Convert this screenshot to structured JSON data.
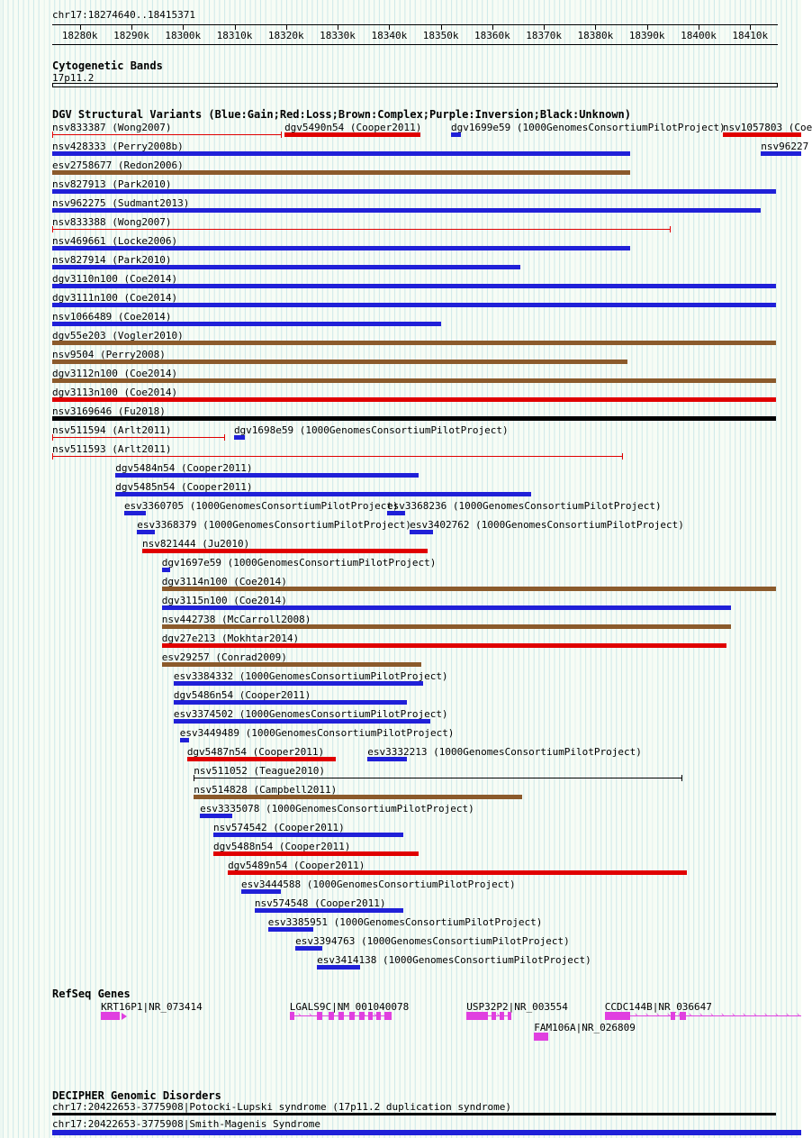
{
  "chart_data": {
    "type": "genome-tracks",
    "region": {
      "chrom": "chr17",
      "start": 18274640,
      "end": 18415371,
      "label": "chr17:18274640..18415371"
    },
    "ruler": {
      "ticks": [
        {
          "bp": 18280000,
          "label": "18280k"
        },
        {
          "bp": 18290000,
          "label": "18290k"
        },
        {
          "bp": 18300000,
          "label": "18300k"
        },
        {
          "bp": 18310000,
          "label": "18310k"
        },
        {
          "bp": 18320000,
          "label": "18320k"
        },
        {
          "bp": 18330000,
          "label": "18330k"
        },
        {
          "bp": 18340000,
          "label": "18340k"
        },
        {
          "bp": 18350000,
          "label": "18350k"
        },
        {
          "bp": 18360000,
          "label": "18360k"
        },
        {
          "bp": 18370000,
          "label": "18370k"
        },
        {
          "bp": 18380000,
          "label": "18380k"
        },
        {
          "bp": 18390000,
          "label": "18390k"
        },
        {
          "bp": 18400000,
          "label": "18400k"
        },
        {
          "bp": 18410000,
          "label": "18410k"
        }
      ]
    },
    "cytobands": {
      "header": "Cytogenetic Bands",
      "band": "17p11.2"
    },
    "colors": {
      "gain": "#2020d8",
      "loss": "#e00000",
      "complex": "#8b5a2b",
      "inversion": "#800080",
      "unknown": "#000000",
      "gene": "#e040e0",
      "grid": "#cfe9e9"
    },
    "dgv": {
      "header": "DGV Structural Variants (Blue:Gain;Red:Loss;Brown:Complex;Purple:Inversion;Black:Unknown)",
      "rows": [
        [
          {
            "label": "nsv833387 (Wong2007)",
            "color": "loss",
            "glyph": "line",
            "start": 18274640,
            "end": 18319200
          },
          {
            "label": "dgv5490n54 (Cooper2011)",
            "color": "loss",
            "glyph": "bar",
            "start": 18319700,
            "end": 18346000
          },
          {
            "label": "dgv1699e59 (1000GenomesConsortiumPilotProject)",
            "color": "gain",
            "glyph": "bar",
            "start": 18352000,
            "end": 18353900
          },
          {
            "label": "nsv1057803 (Coe",
            "color": "loss",
            "glyph": "bar",
            "start": 18404700,
            "end": 18420000
          }
        ],
        [
          {
            "label": "nsv428333 (Perry2008b)",
            "color": "gain",
            "glyph": "bar",
            "start": 18274640,
            "end": 18386700
          },
          {
            "label": "nsv96227",
            "color": "gain",
            "glyph": "bar",
            "start": 18412100,
            "end": 18420000
          }
        ],
        [
          {
            "label": "esv2758677 (Redon2006)",
            "color": "complex",
            "glyph": "bar",
            "start": 18274640,
            "end": 18386700
          }
        ],
        [
          {
            "label": "nsv827913 (Park2010)",
            "color": "gain",
            "glyph": "bar",
            "start": 18274640,
            "end": 18415000
          }
        ],
        [
          {
            "label": "nsv962275 (Sudmant2013)",
            "color": "gain",
            "glyph": "bar",
            "start": 18274640,
            "end": 18412100
          }
        ],
        [
          {
            "label": "nsv833388 (Wong2007)",
            "color": "loss",
            "glyph": "line",
            "start": 18274640,
            "end": 18394600
          }
        ],
        [
          {
            "label": "nsv469661 (Locke2006)",
            "color": "gain",
            "glyph": "bar",
            "start": 18274640,
            "end": 18386700
          }
        ],
        [
          {
            "label": "nsv827914 (Park2010)",
            "color": "gain",
            "glyph": "bar",
            "start": 18274640,
            "end": 18365400
          }
        ],
        [
          {
            "label": "dgv3110n100 (Coe2014)",
            "color": "gain",
            "glyph": "bar",
            "start": 18274640,
            "end": 18415000
          }
        ],
        [
          {
            "label": "dgv3111n100 (Coe2014)",
            "color": "gain",
            "glyph": "bar",
            "start": 18274640,
            "end": 18415000
          }
        ],
        [
          {
            "label": "nsv1066489 (Coe2014)",
            "color": "gain",
            "glyph": "bar",
            "start": 18274640,
            "end": 18350100
          }
        ],
        [
          {
            "label": "dgv55e203 (Vogler2010)",
            "color": "complex",
            "glyph": "bar",
            "start": 18274640,
            "end": 18415000
          }
        ],
        [
          {
            "label": "nsv9504 (Perry2008)",
            "color": "complex",
            "glyph": "bar",
            "start": 18274640,
            "end": 18386200
          }
        ],
        [
          {
            "label": "dgv3112n100 (Coe2014)",
            "color": "complex",
            "glyph": "bar",
            "start": 18274640,
            "end": 18415000
          }
        ],
        [
          {
            "label": "dgv3113n100 (Coe2014)",
            "color": "loss",
            "glyph": "bar",
            "start": 18274640,
            "end": 18415000
          }
        ],
        [
          {
            "label": "nsv3169646 (Fu2018)",
            "color": "unknown",
            "glyph": "bar",
            "start": 18274640,
            "end": 18415000
          }
        ],
        [
          {
            "label": "nsv511594 (Arlt2011)",
            "color": "loss",
            "glyph": "line",
            "start": 18274640,
            "end": 18308200
          },
          {
            "label": "dgv1698e59 (1000GenomesConsortiumPilotProject)",
            "color": "gain",
            "glyph": "bar",
            "start": 18309900,
            "end": 18312000
          }
        ],
        [
          {
            "label": "nsv511593 (Arlt2011)",
            "color": "loss",
            "glyph": "line",
            "start": 18274640,
            "end": 18385300
          }
        ],
        [
          {
            "label": "dgv5484n54 (Cooper2011)",
            "color": "gain",
            "glyph": "bar",
            "start": 18286900,
            "end": 18345700
          }
        ],
        [
          {
            "label": "dgv5485n54 (Cooper2011)",
            "color": "gain",
            "glyph": "bar",
            "start": 18286900,
            "end": 18367500
          }
        ],
        [
          {
            "label": "esv3360705 (1000GenomesConsortiumPilotProject)",
            "color": "gain",
            "glyph": "bar",
            "start": 18288600,
            "end": 18292800
          },
          {
            "label": "esv3368236 (1000GenomesConsortiumPilotProject)",
            "color": "gain",
            "glyph": "bar",
            "start": 18339600,
            "end": 18343100
          }
        ],
        [
          {
            "label": "esv3368379 (1000GenomesConsortiumPilotProject)",
            "color": "gain",
            "glyph": "bar",
            "start": 18291100,
            "end": 18294500
          },
          {
            "label": "esv3402762 (1000GenomesConsortiumPilotProject)",
            "color": "gain",
            "glyph": "bar",
            "start": 18344000,
            "end": 18348500
          }
        ],
        [
          {
            "label": "nsv821444 (Ju2010)",
            "color": "loss",
            "glyph": "bar",
            "start": 18292100,
            "end": 18347400
          }
        ],
        [
          {
            "label": "dgv1697e59 (1000GenomesConsortiumPilotProject)",
            "color": "gain",
            "glyph": "bar",
            "start": 18295900,
            "end": 18297500
          }
        ],
        [
          {
            "label": "dgv3114n100 (Coe2014)",
            "color": "complex",
            "glyph": "bar",
            "start": 18295900,
            "end": 18415000
          }
        ],
        [
          {
            "label": "dgv3115n100 (Coe2014)",
            "color": "gain",
            "glyph": "bar",
            "start": 18295900,
            "end": 18406300
          }
        ],
        [
          {
            "label": "nsv442738 (McCarroll2008)",
            "color": "complex",
            "glyph": "bar",
            "start": 18295900,
            "end": 18406300
          }
        ],
        [
          {
            "label": "dgv27e213 (Mokhtar2014)",
            "color": "loss",
            "glyph": "bar",
            "start": 18295900,
            "end": 18405400
          }
        ],
        [
          {
            "label": "esv29257 (Conrad2009)",
            "color": "complex",
            "glyph": "bar",
            "start": 18295900,
            "end": 18346200
          }
        ],
        [
          {
            "label": "esv3384332 (1000GenomesConsortiumPilotProject)",
            "color": "gain",
            "glyph": "bar",
            "start": 18298200,
            "end": 18346600
          }
        ],
        [
          {
            "label": "dgv5486n54 (Cooper2011)",
            "color": "gain",
            "glyph": "bar",
            "start": 18298200,
            "end": 18343400
          }
        ],
        [
          {
            "label": "esv3374502 (1000GenomesConsortiumPilotProject)",
            "color": "gain",
            "glyph": "bar",
            "start": 18298200,
            "end": 18348000
          }
        ],
        [
          {
            "label": "esv3449489 (1000GenomesConsortiumPilotProject)",
            "color": "gain",
            "glyph": "bar",
            "start": 18299400,
            "end": 18301200
          }
        ],
        [
          {
            "label": "dgv5487n54 (Cooper2011)",
            "color": "loss",
            "glyph": "bar",
            "start": 18300800,
            "end": 18329600
          },
          {
            "label": "esv3332213 (1000GenomesConsortiumPilotProject)",
            "color": "gain",
            "glyph": "bar",
            "start": 18335800,
            "end": 18343400
          }
        ],
        [
          {
            "label": "nsv511052 (Teague2010)",
            "color": "unknown",
            "glyph": "line",
            "start": 18302100,
            "end": 18396900
          }
        ],
        [
          {
            "label": "nsv514828 (Campbell2011)",
            "color": "complex",
            "glyph": "bar",
            "start": 18302100,
            "end": 18365800
          }
        ],
        [
          {
            "label": "esv3335078 (1000GenomesConsortiumPilotProject)",
            "color": "gain",
            "glyph": "bar",
            "start": 18303300,
            "end": 18309600
          }
        ],
        [
          {
            "label": "nsv574542 (Cooper2011)",
            "color": "gain",
            "glyph": "bar",
            "start": 18305900,
            "end": 18342700
          }
        ],
        [
          {
            "label": "dgv5488n54 (Cooper2011)",
            "color": "loss",
            "glyph": "bar",
            "start": 18305900,
            "end": 18345700
          }
        ],
        [
          {
            "label": "dgv5489n54 (Cooper2011)",
            "color": "loss",
            "glyph": "bar",
            "start": 18308700,
            "end": 18397700
          }
        ],
        [
          {
            "label": "esv3444588 (1000GenomesConsortiumPilotProject)",
            "color": "gain",
            "glyph": "bar",
            "start": 18311300,
            "end": 18319000
          }
        ],
        [
          {
            "label": "nsv574548 (Cooper2011)",
            "color": "gain",
            "glyph": "bar",
            "start": 18313900,
            "end": 18342700
          }
        ],
        [
          {
            "label": "esv3385951 (1000GenomesConsortiumPilotProject)",
            "color": "gain",
            "glyph": "bar",
            "start": 18316500,
            "end": 18325300
          }
        ],
        [
          {
            "label": "esv3394763 (1000GenomesConsortiumPilotProject)",
            "color": "gain",
            "glyph": "bar",
            "start": 18321800,
            "end": 18327000
          }
        ],
        [
          {
            "label": "esv3414138 (1000GenomesConsortiumPilotProject)",
            "color": "gain",
            "glyph": "bar",
            "start": 18326000,
            "end": 18334400
          }
        ]
      ]
    },
    "refseq": {
      "header": "RefSeq Genes",
      "genes": [
        {
          "name": "KRT16P1|NR_073414",
          "start": 18284100,
          "end": 18287700,
          "strand": "+",
          "row": 0,
          "arrow": true,
          "exons": [
            [
              18284100,
              18287700
            ]
          ]
        },
        {
          "name": "LGALS9C|NM_001040078",
          "start": 18320700,
          "end": 18340500,
          "strand": "+",
          "row": 0,
          "exons": [
            [
              18320700,
              18321600
            ],
            [
              18326000,
              18327000
            ],
            [
              18328200,
              18329300
            ],
            [
              18330200,
              18331200
            ],
            [
              18332300,
              18333300
            ],
            [
              18334200,
              18335200
            ],
            [
              18335900,
              18336800
            ],
            [
              18337500,
              18338400
            ],
            [
              18339100,
              18340500
            ]
          ]
        },
        {
          "name": "USP32P2|NR_003554",
          "start": 18355000,
          "end": 18363700,
          "strand": "+",
          "row": 0,
          "exons": [
            [
              18355000,
              18359100
            ],
            [
              18359800,
              18360700
            ],
            [
              18361400,
              18362300
            ],
            [
              18363000,
              18363700
            ]
          ]
        },
        {
          "name": "CCDC144B|NR_036647",
          "start": 18381800,
          "end": 18420000,
          "strand": "+",
          "row": 0,
          "exons": [
            [
              18381800,
              18386700
            ],
            [
              18394600,
              18395500
            ],
            [
              18396300,
              18397600
            ]
          ]
        },
        {
          "name": "FAM106A|NR_026809",
          "start": 18368100,
          "end": 18370800,
          "strand": "+",
          "row": 1,
          "exons": [
            [
              18368100,
              18370800
            ]
          ]
        }
      ]
    },
    "decipher": {
      "header": "DECIPHER Genomic Disorders",
      "entries": [
        {
          "label": "chr17:20422653-3775908|Potocki-Lupski syndrome (17p11.2 duplication syndrome)",
          "color": "unknown",
          "height": 3,
          "start": 18274640,
          "end": 18415000
        },
        {
          "label": "chr17:20422653-3775908|Smith-Magenis Syndrome",
          "color": "gain",
          "height": 6,
          "start": 18274640,
          "end": 18420000
        }
      ]
    }
  }
}
